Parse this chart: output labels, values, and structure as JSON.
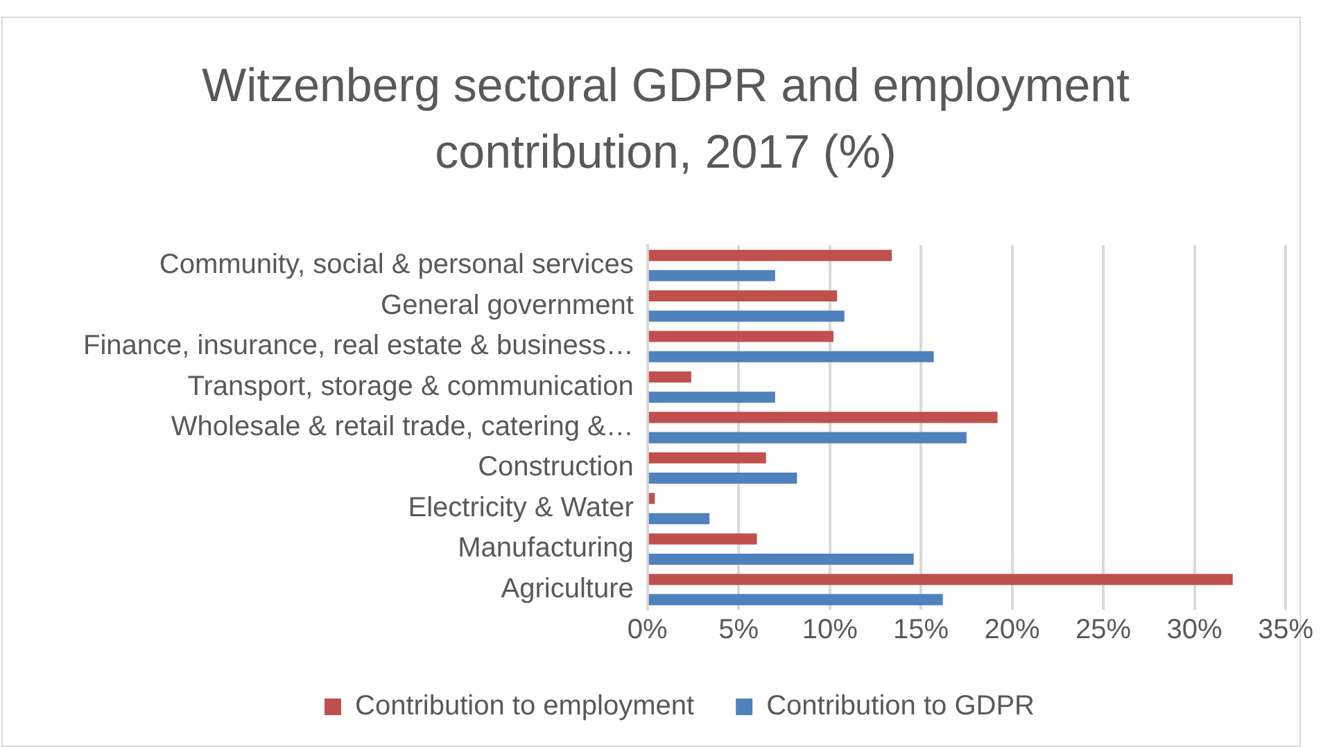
{
  "chart_data": {
    "type": "bar",
    "orientation": "horizontal",
    "title": "Witzenberg sectoral GDPR and employment contribution, 2017 (%)",
    "categories": [
      "Community, social & personal services",
      "General government",
      "Finance, insurance, real estate & business…",
      "Transport, storage & communication",
      "Wholesale & retail trade, catering &…",
      "Construction",
      "Electricity & Water",
      "Manufacturing",
      "Agriculture"
    ],
    "series": [
      {
        "name": "Contribution to employment",
        "color": "#c0504d",
        "values": [
          13.4,
          10.4,
          10.2,
          2.4,
          19.2,
          6.5,
          0.4,
          6.0,
          32.1
        ]
      },
      {
        "name": "Contribution to GDPR",
        "color": "#4f81bd",
        "values": [
          7.0,
          10.8,
          15.7,
          7.0,
          17.5,
          8.2,
          3.4,
          14.6,
          16.2
        ]
      }
    ],
    "xlim": [
      0,
      35
    ],
    "xticks": [
      {
        "value": 0,
        "label": "0%"
      },
      {
        "value": 5,
        "label": "5%"
      },
      {
        "value": 10,
        "label": "10%"
      },
      {
        "value": 15,
        "label": "15%"
      },
      {
        "value": 20,
        "label": "20%"
      },
      {
        "value": 25,
        "label": "25%"
      },
      {
        "value": 30,
        "label": "30%"
      },
      {
        "value": 35,
        "label": "35%"
      }
    ],
    "grid": "x",
    "legend": "bottom"
  }
}
